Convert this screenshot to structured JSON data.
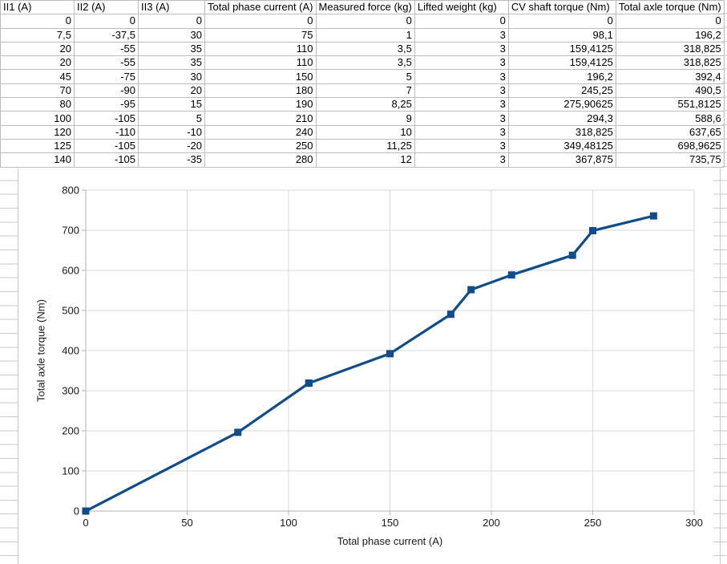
{
  "table": {
    "columns": [
      "II1 (A)",
      "II2 (A)",
      "II3 (A)",
      "Total phase current (A)",
      "Measured force (kg)",
      "Lifted weight (kg)",
      "CV shaft torque (Nm)",
      "Total axle torque (Nm)"
    ],
    "rows": [
      [
        "0",
        "0",
        "0",
        "0",
        "0",
        "0",
        "0",
        "0"
      ],
      [
        "7,5",
        "-37,5",
        "30",
        "75",
        "1",
        "3",
        "98,1",
        "196,2"
      ],
      [
        "20",
        "-55",
        "35",
        "110",
        "3,5",
        "3",
        "159,4125",
        "318,825"
      ],
      [
        "20",
        "-55",
        "35",
        "110",
        "3,5",
        "3",
        "159,4125",
        "318,825"
      ],
      [
        "45",
        "-75",
        "30",
        "150",
        "5",
        "3",
        "196,2",
        "392,4"
      ],
      [
        "70",
        "-90",
        "20",
        "180",
        "7",
        "3",
        "245,25",
        "490,5"
      ],
      [
        "80",
        "-95",
        "15",
        "190",
        "8,25",
        "3",
        "275,90625",
        "551,8125"
      ],
      [
        "100",
        "-105",
        "5",
        "210",
        "9",
        "3",
        "294,3",
        "588,6"
      ],
      [
        "120",
        "-110",
        "-10",
        "240",
        "10",
        "3",
        "318,825",
        "637,65"
      ],
      [
        "125",
        "-105",
        "-20",
        "250",
        "11,25",
        "3",
        "349,48125",
        "698,9625"
      ],
      [
        "140",
        "-105",
        "-35",
        "280",
        "12",
        "3",
        "367,875",
        "735,75"
      ]
    ]
  },
  "chart_data": {
    "type": "line",
    "title": "",
    "xlabel": "Total phase current (A)",
    "ylabel": "Total axle torque (Nm)",
    "x": [
      0,
      75,
      110,
      110,
      150,
      180,
      190,
      210,
      240,
      250,
      280
    ],
    "series": [
      {
        "name": "Total axle torque (Nm)",
        "values": [
          0,
          196.2,
          318.825,
          318.825,
          392.4,
          490.5,
          551.8125,
          588.6,
          637.65,
          698.9625,
          735.75
        ]
      }
    ],
    "xlim": [
      0,
      300
    ],
    "ylim": [
      0,
      800
    ],
    "x_ticks": [
      0,
      50,
      100,
      150,
      200,
      250,
      300
    ],
    "y_ticks": [
      0,
      100,
      200,
      300,
      400,
      500,
      600,
      700,
      800
    ],
    "grid": true,
    "legend_position": "none",
    "marker": "square",
    "series_color": "#0E4C8C",
    "gridline_color": "#d9d9d9",
    "axis_color": "#b3b3b3",
    "label_color": "#1a1a1a"
  }
}
